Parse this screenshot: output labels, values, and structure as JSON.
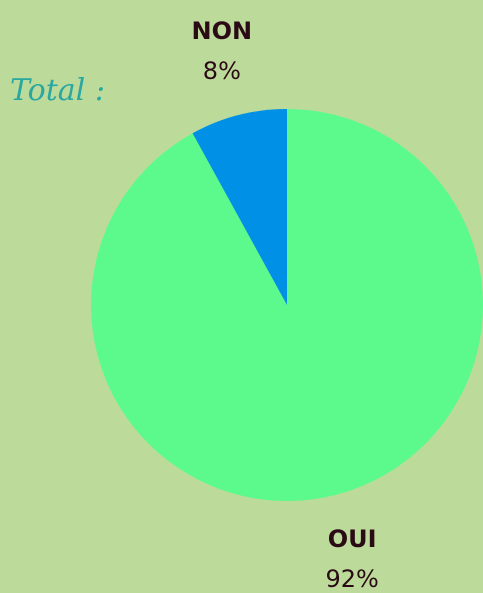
{
  "chart_data": {
    "type": "pie",
    "title": "Total :",
    "categories": [
      "OUI",
      "NON"
    ],
    "values": [
      92,
      8
    ],
    "value_labels": [
      "92%",
      "8%"
    ],
    "colors": [
      "#5cfa8c",
      "#0090e6"
    ]
  }
}
